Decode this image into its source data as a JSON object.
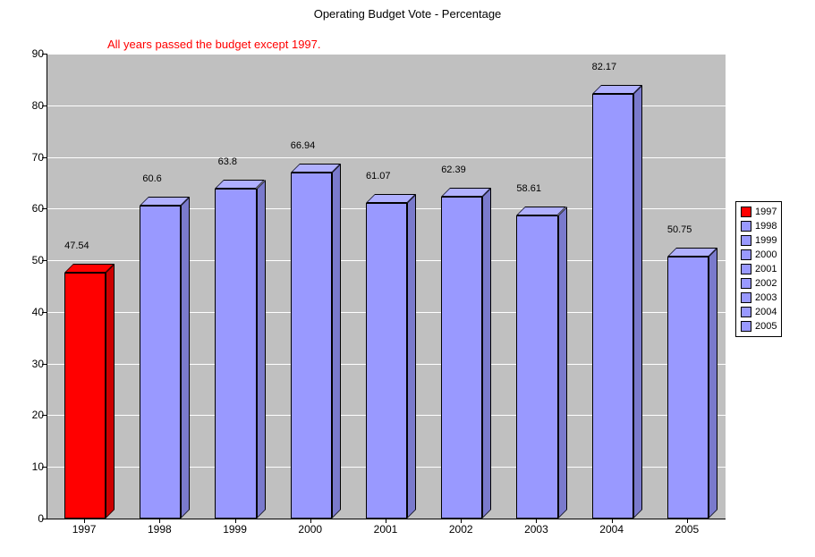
{
  "chart": {
    "type": "bar",
    "title": "Operating Budget Vote - Percentage",
    "annotation": "All years passed the budget except 1997.",
    "annotation_color": "#ff0000",
    "plot_background": "#c0c0c0",
    "grid_color": "#ffffff",
    "ylim": [
      0,
      90
    ],
    "ytick_step": 10,
    "yticks": [
      0,
      10,
      20,
      30,
      40,
      50,
      60,
      70,
      80,
      90
    ],
    "categories": [
      "1997",
      "1998",
      "1999",
      "2000",
      "2001",
      "2002",
      "2003",
      "2004",
      "2005"
    ],
    "values": [
      47.54,
      60.6,
      63.8,
      66.94,
      61.07,
      62.39,
      58.61,
      82.17,
      50.75
    ],
    "value_labels": [
      "47.54",
      "60.6",
      "63.8",
      "66.94",
      "61.07",
      "62.39",
      "58.61",
      "82.17",
      "50.75"
    ],
    "bar_colors": [
      "#ff0000",
      "#9999ff",
      "#9999ff",
      "#9999ff",
      "#9999ff",
      "#9999ff",
      "#9999ff",
      "#9999ff",
      "#9999ff"
    ],
    "bar_shadow_color": "#808080",
    "bar_width_ratio": 0.55,
    "title_fontsize": 13,
    "label_fontsize": 12,
    "legend": {
      "items": [
        "1997",
        "1998",
        "1999",
        "2000",
        "2001",
        "2002",
        "2003",
        "2004",
        "2005"
      ],
      "colors": [
        "#ff0000",
        "#9999ff",
        "#9999ff",
        "#9999ff",
        "#9999ff",
        "#9999ff",
        "#9999ff",
        "#9999ff",
        "#9999ff"
      ]
    }
  }
}
